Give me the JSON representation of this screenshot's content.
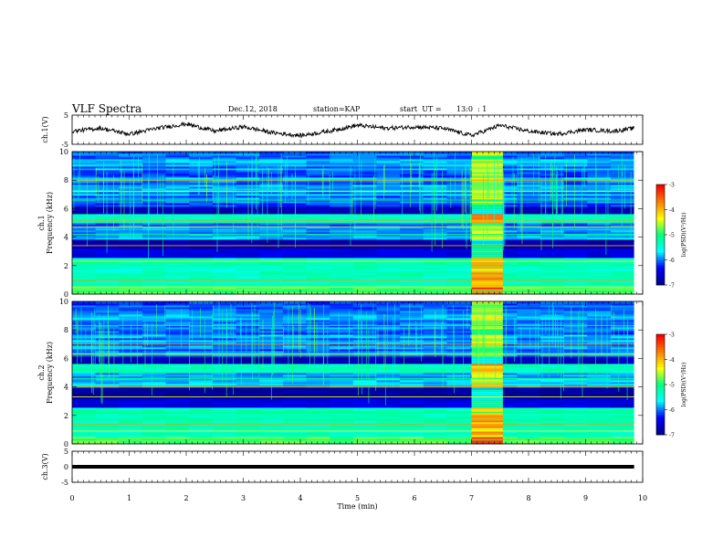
{
  "header": {
    "title": "VLF Spectra",
    "date": "Dec.12, 2018",
    "station": "station=KAP",
    "start_label": "start  UT =",
    "start_time": "13:0  : 1"
  },
  "colors": {
    "trace": "#000000",
    "colormap": [
      "#00008f",
      "#0000ff",
      "#00ffff",
      "#00ff80",
      "#ffff00",
      "#ff8000",
      "#ff0000",
      "#ffffff"
    ]
  },
  "chart_data": [
    {
      "type": "line",
      "panel": "ch1_waveform",
      "ylabel": "ch.1(V)",
      "ylim": [
        -5,
        5
      ],
      "y_ticks": [
        "5",
        "-5"
      ],
      "x": [
        0,
        0.5,
        1,
        1.5,
        2,
        2.5,
        3,
        3.5,
        4,
        4.5,
        5,
        5.5,
        6,
        6.5,
        7,
        7.5,
        8,
        8.5,
        9,
        9.5,
        9.85
      ],
      "values": [
        -0.5,
        0.5,
        -1.5,
        0.5,
        2.0,
        -0.5,
        1.0,
        -1.0,
        -2.0,
        -0.5,
        1.5,
        0.5,
        1.0,
        0.5,
        -2.0,
        1.5,
        -0.5,
        -1.5,
        0.0,
        -0.5,
        0.5
      ]
    },
    {
      "type": "heatmap",
      "panel": "ch1_spectrogram",
      "ylabel": "ch.1 Frequency (kHz)",
      "ylim": [
        0,
        10
      ],
      "y_ticks": [
        "0",
        "2",
        "4",
        "6",
        "8",
        "10"
      ],
      "colorbar": {
        "label": "log(PSD)(V²/Hz)",
        "range": [
          -7,
          -3
        ],
        "ticks": [
          "-3",
          "-4",
          "-5",
          "-6",
          "-7"
        ]
      },
      "bright_interval_min": [
        7.0,
        7.55
      ],
      "colorbar_label": "log(PSD)(V²/Hz)"
    },
    {
      "type": "heatmap",
      "panel": "ch2_spectrogram",
      "ylabel": "ch.2 Frequency (kHz)",
      "ylim": [
        0,
        10
      ],
      "y_ticks": [
        "0",
        "2",
        "4",
        "6",
        "8",
        "10"
      ],
      "colorbar": {
        "label": "log(PSD)(V²/Hz)",
        "range": [
          -7,
          -3
        ],
        "ticks": [
          "-3",
          "-4",
          "-5",
          "-6",
          "-7"
        ]
      },
      "bright_interval_min": [
        7.0,
        7.55
      ],
      "colorbar_label": "log(PSD)(V²/Hz)"
    },
    {
      "type": "line",
      "panel": "ch3_waveform",
      "ylabel": "ch.3(V)",
      "ylim": [
        -5,
        5
      ],
      "y_ticks": [
        "5",
        "0",
        "-5"
      ],
      "x": [
        0,
        9.85
      ],
      "values": [
        0,
        0
      ]
    }
  ],
  "x_axis": {
    "xlabel": "Time  (min)",
    "xlim": [
      0,
      10
    ],
    "ticks": [
      "0",
      "1",
      "2",
      "3",
      "4",
      "5",
      "6",
      "7",
      "8",
      "9",
      "10"
    ]
  }
}
